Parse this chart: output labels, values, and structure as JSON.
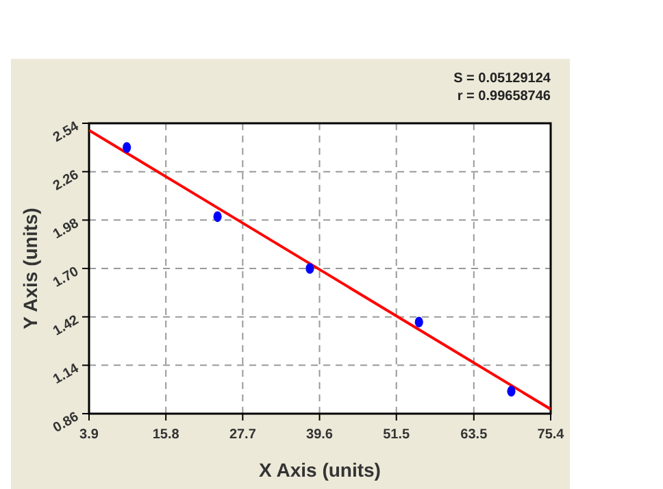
{
  "chart_data": {
    "type": "scatter",
    "xlabel": "X Axis (units)",
    "ylabel": "Y Axis (units)",
    "annotations": [
      "S = 0.05129124",
      "r = 0.99658746"
    ],
    "xlim": [
      3.9,
      75.4
    ],
    "xticks": [
      3.9,
      15.8,
      27.7,
      39.6,
      51.5,
      63.5,
      75.4
    ],
    "ylim": [
      0.86,
      2.54
    ],
    "yticks": [
      0.86,
      1.14,
      1.42,
      {
        "value": 1.7,
        "label": "1.70"
      },
      1.98,
      2.26,
      2.54
    ],
    "grid": true,
    "series": [
      {
        "marker": "circle",
        "color": "#0000ff",
        "x": [
          9.75,
          23.8,
          38.1,
          55.0,
          69.3
        ],
        "values": [
          2.4,
          2.0,
          1.7,
          1.39,
          0.99
        ]
      },
      {
        "type": "line",
        "color": "#ff0000",
        "x": [
          3.9,
          75.4
        ],
        "values": [
          2.5,
          0.886
        ]
      }
    ]
  }
}
